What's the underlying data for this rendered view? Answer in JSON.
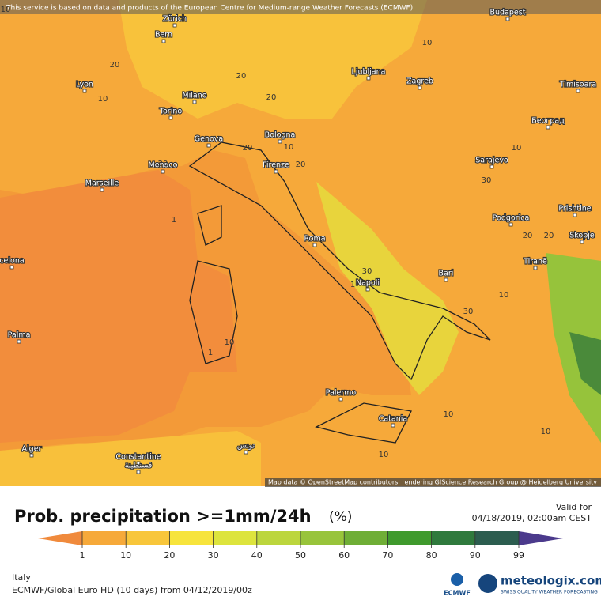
{
  "header": {
    "notice": "This service is based on data and products of the European Centre for Medium-range Weather Forecasts (ECMWF)"
  },
  "map": {
    "cities": [
      "Budapest",
      "Zürich",
      "Bern",
      "Lyon",
      "Ljubljana",
      "Zagreb",
      "Timisoara",
      "Milano",
      "Torino",
      "Bologna",
      "Београд",
      "Genova",
      "Firenze",
      "Monaco",
      "Sarajevo",
      "Marseille",
      "Prishtine",
      "Podgorica",
      "Roma",
      "Skopje",
      "celona",
      "Tiranë",
      "Bari",
      "Napoli",
      "Palma",
      "Palermo",
      "Catania",
      "Alger",
      "تونس",
      "Constantine",
      "قسنطينة"
    ],
    "contour_labels": [
      10,
      20,
      10,
      20,
      20,
      10,
      10,
      20,
      20,
      20,
      10,
      30,
      1,
      20,
      20,
      30,
      1,
      30,
      10,
      10,
      1,
      10,
      10,
      10
    ],
    "attribution": "Map data © OpenStreetMap contributors, rendering GIScience Research Group @ Heidelberg University"
  },
  "legend": {
    "title": "Prob. precipitation >=1mm/24h",
    "unit": "(%)",
    "valid_label": "Valid for",
    "valid_time": "04/18/2019, 02:00am CEST",
    "ticks": [
      1,
      10,
      20,
      30,
      40,
      50,
      60,
      70,
      80,
      90,
      99
    ],
    "colors": [
      "#f08a3c",
      "#f6a93a",
      "#f8c63b",
      "#f7e43c",
      "#dde43d",
      "#bcd63d",
      "#98c43b",
      "#6fae36",
      "#3f9a2d",
      "#2f7a3d",
      "#2c5d4f",
      "#4b3a8c"
    ]
  },
  "footer": {
    "region": "Italy",
    "model_run": "ECMWF/Global Euro HD (10 days) from 04/12/2019/00z",
    "ecmwf": "ECMWF",
    "brand": "meteologix.com",
    "tagline": "SWISS QUALITY WEATHER FORECASTING"
  }
}
